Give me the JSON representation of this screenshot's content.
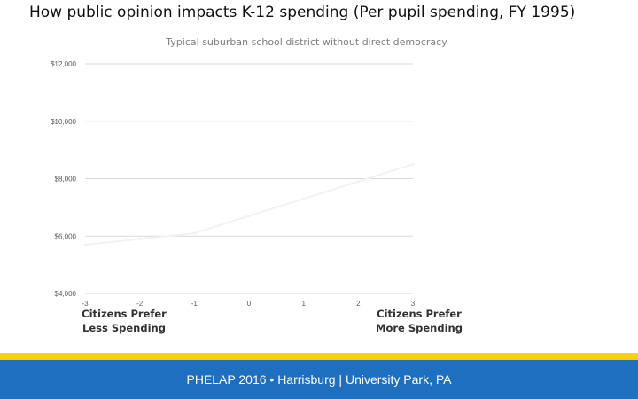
{
  "slide": {
    "title": "How public opinion impacts K-12 spending (Per pupil spending, FY 1995)",
    "footer": "PHELAP 2016 • Harrisburg | University Park, PA",
    "colors": {
      "footer_bar": "#1e6fbf",
      "footer_stripe": "#f5d300",
      "line": "#f2f2f2"
    }
  },
  "chart_data": {
    "type": "line",
    "title": "Typical suburban school district without direct democracy",
    "xlim": [
      -3,
      3
    ],
    "ylim": [
      4000,
      12000
    ],
    "x_ticks": [
      "-3",
      "-2",
      "-1",
      "0",
      "1",
      "2",
      "3"
    ],
    "y_ticks": [
      "$4,000",
      "$6,000",
      "$8,000",
      "$10,000",
      "$12,000"
    ],
    "x_end_labels": {
      "left": [
        "Citizens Prefer",
        "Less Spending"
      ],
      "right": [
        "Citizens Prefer",
        "More Spending"
      ]
    },
    "series": [
      {
        "x": [
          -3,
          -2,
          -1,
          0,
          1,
          2,
          3
        ],
        "values": [
          5700,
          5900,
          6100,
          6700,
          7300,
          7900,
          8500
        ]
      }
    ],
    "grid": true
  }
}
